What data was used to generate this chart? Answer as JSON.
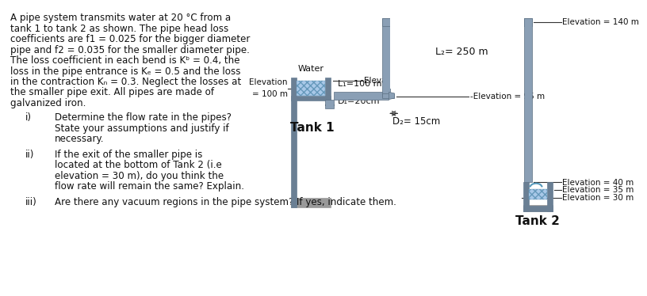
{
  "bg_color": "#ffffff",
  "pipe_color": "#8a9fb5",
  "pipe_edge_color": "#5a6f82",
  "water_color": "#a8c8e8",
  "water_edge_color": "#6699bb",
  "tank_wall_color": "#6a7f94",
  "ground_color": "#999999",
  "text_color": "#111111",
  "problem_text": [
    "A pipe system transmits water at 20 °C from a",
    "tank 1 to tank 2 as shown. The pipe head loss",
    "coefficients are f1 = 0.025 for the bigger diameter",
    "pipe and f2 = 0.035 for the smaller diameter pipe.",
    "The loss coefficient in each bend is Kᵇ = 0.4, the",
    "loss in the pipe entrance is Kₑ = 0.5 and the loss",
    "in the contraction Kₙ = 0.3. Neglect the losses at",
    "the smaller pipe exit. All pipes are made of",
    "galvanized iron."
  ],
  "elev_105": "Elevation = 105 m",
  "elev_140": "Elevation = 140 m",
  "elev_95": "-Elevation = 95 m",
  "elev_100_a": "Elevation",
  "elev_100_b": "= 100 m",
  "elev_40": "Elevation = 40 m",
  "elev_35": "Elevation = 35 m",
  "elev_30": "Elevation = 30 m",
  "label_water": "Water",
  "label_L1": "L₁=100 m",
  "label_D1": "D₁=20cm",
  "label_L2": "L₂= 250 m",
  "label_D2": "D₂= 15cm",
  "label_tank1": "Tank 1",
  "label_tank2": "Tank 2",
  "q1_num": "i)",
  "q1_l1": "Determine the flow rate in the pipes?",
  "q1_l2": "State your assumptions and justify if",
  "q1_l3": "necessary.",
  "q2_num": "ii)",
  "q2_l1": "If the exit of the smaller pipe is",
  "q2_l2": "located at the bottom of Tank 2 (i.e",
  "q2_l3": "elevation = 30 m), do you think the",
  "q2_l4": "flow rate will remain the same? Explain.",
  "q3_num": "iii)",
  "q3_l1": "Are there any vacuum regions in the pipe system? If yes, indicate them."
}
